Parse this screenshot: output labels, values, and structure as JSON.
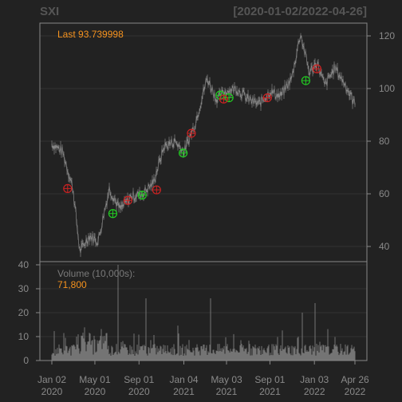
{
  "header": {
    "symbol": "SXI",
    "date_range": "[2020-01-02/2022-04-26]"
  },
  "price_panel": {
    "last_label": "Last 93.739998"
  },
  "volume_panel": {
    "label": "Volume (10,000s):",
    "last_value": "71,800"
  },
  "colors": {
    "background": "#222222",
    "frame": "#888888",
    "grid": "#333333",
    "candle": "#7a7a7a",
    "buy": "#22cc22",
    "sell": "#cc2222",
    "volume": "#8a8a8a",
    "accent": "#f7931e"
  },
  "chart_data": [
    {
      "type": "line",
      "name": "price",
      "x": [
        "2020-01-02",
        "2020-02-01",
        "2020-03-01",
        "2020-03-20",
        "2020-04-15",
        "2020-05-10",
        "2020-06-10",
        "2020-07-10",
        "2020-08-10",
        "2020-09-10",
        "2020-10-10",
        "2020-11-10",
        "2020-12-10",
        "2021-01-05",
        "2021-02-05",
        "2021-03-10",
        "2021-04-05",
        "2021-05-01",
        "2021-06-01",
        "2021-07-01",
        "2021-08-01",
        "2021-09-01",
        "2021-10-01",
        "2021-11-01",
        "2021-11-25",
        "2021-12-20",
        "2022-01-10",
        "2022-02-01",
        "2022-03-01",
        "2022-04-01",
        "2022-04-26"
      ],
      "y": [
        79,
        76,
        62,
        38,
        44,
        42,
        62,
        54,
        59,
        60,
        64,
        78,
        80,
        76,
        87,
        104,
        96,
        99,
        100,
        96,
        94,
        99,
        97,
        104,
        121,
        106,
        110,
        101,
        108,
        101,
        93.74
      ],
      "ylim": [
        32,
        122
      ],
      "yticks": [
        40,
        60,
        80,
        100,
        120
      ]
    },
    {
      "type": "scatter",
      "name": "buy signals",
      "x": [
        "2020-06-20",
        "2020-09-10",
        "2021-01-02",
        "2021-04-15",
        "2021-05-10",
        "2021-12-10"
      ],
      "y": [
        52.5,
        59.5,
        75.5,
        97.5,
        96.5,
        103
      ]
    },
    {
      "type": "scatter",
      "name": "sell signals",
      "x": [
        "2020-02-15",
        "2020-08-01",
        "2020-10-20",
        "2021-01-25",
        "2021-04-25",
        "2021-08-25",
        "2022-01-10"
      ],
      "y": [
        62,
        57.5,
        61.5,
        83,
        96,
        96.5,
        107.5
      ]
    },
    {
      "type": "bar",
      "name": "volume",
      "ylim": [
        0,
        40
      ],
      "yticks": [
        0,
        10,
        20,
        30,
        40
      ],
      "spikes": [
        {
          "x": "2020-07-05",
          "value": 40
        },
        {
          "x": "2020-09-20",
          "value": 26
        },
        {
          "x": "2021-03-20",
          "value": 26
        },
        {
          "x": "2021-12-01",
          "value": 20
        },
        {
          "x": "2022-01-05",
          "value": 24
        }
      ]
    }
  ],
  "x_axis": {
    "ticks": [
      {
        "date": "2020-01-02",
        "line1": "Jan 02",
        "line2": "2020"
      },
      {
        "date": "2020-05-01",
        "line1": "May 01",
        "line2": "2020"
      },
      {
        "date": "2020-09-01",
        "line1": "Sep 01",
        "line2": "2020"
      },
      {
        "date": "2021-01-04",
        "line1": "Jan 04",
        "line2": "2021"
      },
      {
        "date": "2021-05-03",
        "line1": "May 03",
        "line2": "2021"
      },
      {
        "date": "2021-09-01",
        "line1": "Sep 01",
        "line2": "2021"
      },
      {
        "date": "2022-01-03",
        "line1": "Jan 03",
        "line2": "2022"
      },
      {
        "date": "2022-04-26",
        "line1": "Apr 26",
        "line2": "2022"
      }
    ]
  }
}
